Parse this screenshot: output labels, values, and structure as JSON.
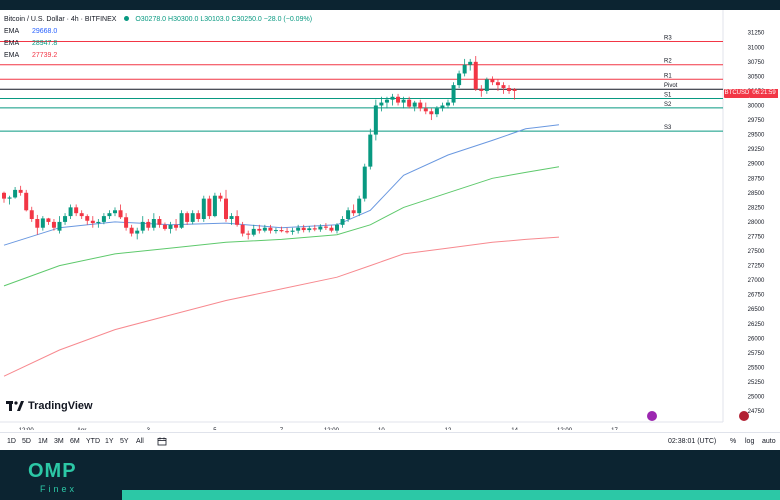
{
  "header": {
    "title": "Bitcoin / U.S. Dollar · 4h · BITFINEX",
    "ohlc": "O30278.0 H30300.0 L30103.0 C30250.0 −28.0 (−0.09%)"
  },
  "legend": [
    {
      "name": "EMA",
      "value": "29668.0",
      "color": "#2962ff"
    },
    {
      "name": "EMA",
      "value": "28947.8",
      "color": "#089981"
    },
    {
      "name": "EMA",
      "value": "27739.2",
      "color": "#f23645"
    }
  ],
  "price_badge": {
    "ticker": "BTCUSD",
    "time": "06:21:59"
  },
  "brand": {
    "name": "TradingView"
  },
  "toolbar": {
    "ranges": [
      "1D",
      "5D",
      "1M",
      "3M",
      "6M",
      "YTD",
      "1Y",
      "5Y",
      "All"
    ],
    "clock": "02:38:01 (UTC)",
    "percent": "%",
    "log": "log",
    "auto": "auto"
  },
  "footer": {
    "brand": "OMP",
    "sub": "Finex"
  },
  "chart_data": {
    "type": "candlestick",
    "y_ticks": [
      24750,
      25000,
      25250,
      25500,
      25750,
      26000,
      26250,
      26500,
      26750,
      27000,
      27250,
      27500,
      27750,
      28000,
      28250,
      28500,
      28750,
      29000,
      29250,
      29500,
      29750,
      30000,
      30250,
      30500,
      30750,
      31000,
      31250
    ],
    "ylim": [
      24700,
      31400
    ],
    "x_ticks": [
      {
        "label": "12:00",
        "bar": 4
      },
      {
        "label": "Apr",
        "bar": 14
      },
      {
        "label": "3",
        "bar": 26
      },
      {
        "label": "5",
        "bar": 38
      },
      {
        "label": "7",
        "bar": 50
      },
      {
        "label": "12:00",
        "bar": 59
      },
      {
        "label": "10",
        "bar": 68
      },
      {
        "label": "12",
        "bar": 80
      },
      {
        "label": "14",
        "bar": 92
      },
      {
        "label": "12:00",
        "bar": 101
      },
      {
        "label": "17",
        "bar": 110
      }
    ],
    "pivot_levels": [
      {
        "name": "R3",
        "price": 31100,
        "color": "#f23645"
      },
      {
        "name": "R2",
        "price": 30700,
        "color": "#f23645"
      },
      {
        "name": "R1",
        "price": 30450,
        "color": "#f23645"
      },
      {
        "name": "Pivot",
        "price": 30280,
        "color": "#131722"
      },
      {
        "name": "S1",
        "price": 30120,
        "color": "#089981"
      },
      {
        "name": "S2",
        "price": 29960,
        "color": "#089981"
      },
      {
        "name": "S3",
        "price": 29560,
        "color": "#089981"
      }
    ],
    "candles": [
      [
        28500,
        28520,
        28330,
        28400
      ],
      [
        28400,
        28450,
        28300,
        28420
      ],
      [
        28420,
        28600,
        28400,
        28550
      ],
      [
        28550,
        28620,
        28450,
        28500
      ],
      [
        28500,
        28550,
        28180,
        28200
      ],
      [
        28200,
        28260,
        28000,
        28050
      ],
      [
        28050,
        28120,
        27780,
        27900
      ],
      [
        27900,
        28100,
        27850,
        28060
      ],
      [
        28060,
        28070,
        27950,
        28000
      ],
      [
        28000,
        28050,
        27850,
        27900
      ],
      [
        27850,
        28100,
        27800,
        28000
      ],
      [
        28000,
        28150,
        27950,
        28100
      ],
      [
        28100,
        28300,
        28050,
        28250
      ],
      [
        28250,
        28300,
        28100,
        28150
      ],
      [
        28150,
        28200,
        28050,
        28100
      ],
      [
        28100,
        28130,
        27950,
        28020
      ],
      [
        28020,
        28100,
        27900,
        27980
      ],
      [
        27980,
        28050,
        27900,
        28000
      ],
      [
        28000,
        28150,
        27960,
        28100
      ],
      [
        28100,
        28200,
        28050,
        28150
      ],
      [
        28150,
        28250,
        28100,
        28200
      ],
      [
        28200,
        28300,
        28050,
        28080
      ],
      [
        28080,
        28150,
        27850,
        27900
      ],
      [
        27900,
        27950,
        27750,
        27800
      ],
      [
        27800,
        27900,
        27700,
        27850
      ],
      [
        27850,
        28100,
        27800,
        28000
      ],
      [
        28000,
        28050,
        27850,
        27900
      ],
      [
        27900,
        28150,
        27850,
        28050
      ],
      [
        28050,
        28100,
        27900,
        27950
      ],
      [
        27950,
        27990,
        27850,
        27880
      ],
      [
        27880,
        28000,
        27800,
        27950
      ],
      [
        27950,
        28050,
        27850,
        27900
      ],
      [
        27900,
        28200,
        27880,
        28150
      ],
      [
        28150,
        28180,
        27950,
        28000
      ],
      [
        28000,
        28200,
        27960,
        28150
      ],
      [
        28150,
        28200,
        28000,
        28050
      ],
      [
        28050,
        28450,
        28000,
        28400
      ],
      [
        28400,
        28450,
        28050,
        28100
      ],
      [
        28100,
        28500,
        28080,
        28450
      ],
      [
        28450,
        28500,
        28350,
        28400
      ],
      [
        28400,
        28550,
        28000,
        28050
      ],
      [
        28050,
        28150,
        27950,
        28100
      ],
      [
        28100,
        28200,
        27920,
        27950
      ],
      [
        27950,
        28000,
        27750,
        27800
      ],
      [
        27800,
        27850,
        27700,
        27780
      ],
      [
        27780,
        27950,
        27750,
        27880
      ],
      [
        27880,
        27950,
        27800,
        27850
      ],
      [
        27850,
        27950,
        27820,
        27900
      ],
      [
        27900,
        27950,
        27800,
        27850
      ],
      [
        27850,
        27900,
        27800,
        27860
      ],
      [
        27860,
        27920,
        27820,
        27840
      ],
      [
        27840,
        27900,
        27800,
        27830
      ],
      [
        27830,
        27900,
        27780,
        27850
      ],
      [
        27850,
        27950,
        27800,
        27900
      ],
      [
        27900,
        27950,
        27820,
        27860
      ],
      [
        27860,
        27930,
        27820,
        27890
      ],
      [
        27890,
        27950,
        27840,
        27870
      ],
      [
        27870,
        27960,
        27830,
        27920
      ],
      [
        27920,
        27980,
        27860,
        27900
      ],
      [
        27900,
        27940,
        27820,
        27850
      ],
      [
        27850,
        27980,
        27800,
        27950
      ],
      [
        27950,
        28100,
        27900,
        28050
      ],
      [
        28050,
        28250,
        28000,
        28200
      ],
      [
        28200,
        28300,
        28100,
        28150
      ],
      [
        28150,
        28450,
        28100,
        28400
      ],
      [
        28400,
        29000,
        28350,
        28950
      ],
      [
        28950,
        29600,
        28900,
        29500
      ],
      [
        29500,
        30100,
        29400,
        30000
      ],
      [
        30000,
        30150,
        29900,
        30050
      ],
      [
        30050,
        30150,
        29950,
        30100
      ],
      [
        30100,
        30200,
        30000,
        30150
      ],
      [
        30150,
        30200,
        30000,
        30050
      ],
      [
        30050,
        30150,
        29950,
        30100
      ],
      [
        30100,
        30150,
        29950,
        29980
      ],
      [
        29980,
        30080,
        29900,
        30050
      ],
      [
        30050,
        30100,
        29900,
        29950
      ],
      [
        29950,
        30050,
        29850,
        29900
      ],
      [
        29900,
        29950,
        29750,
        29850
      ],
      [
        29850,
        29990,
        29800,
        29950
      ],
      [
        29950,
        30050,
        29900,
        30000
      ],
      [
        30000,
        30100,
        29950,
        30050
      ],
      [
        30050,
        30400,
        30000,
        30350
      ],
      [
        30350,
        30600,
        30300,
        30550
      ],
      [
        30550,
        30800,
        30500,
        30700
      ],
      [
        30700,
        30800,
        30600,
        30750
      ],
      [
        30750,
        30850,
        30250,
        30280
      ],
      [
        30280,
        30350,
        30150,
        30250
      ],
      [
        30250,
        30480,
        30200,
        30450
      ],
      [
        30450,
        30500,
        30350,
        30400
      ],
      [
        30400,
        30450,
        30250,
        30350
      ],
      [
        30350,
        30400,
        30200,
        30300
      ],
      [
        30300,
        30350,
        30200,
        30250
      ],
      [
        30278,
        30300,
        30103,
        30250
      ]
    ],
    "ema_fast_points": [
      [
        0,
        27600
      ],
      [
        10,
        27900
      ],
      [
        20,
        28000
      ],
      [
        30,
        27950
      ],
      [
        40,
        27980
      ],
      [
        50,
        27900
      ],
      [
        60,
        27950
      ],
      [
        66,
        28200
      ],
      [
        72,
        28800
      ],
      [
        80,
        29150
      ],
      [
        88,
        29400
      ],
      [
        94,
        29600
      ],
      [
        100,
        29668
      ]
    ],
    "ema_mid_points": [
      [
        0,
        26900
      ],
      [
        10,
        27250
      ],
      [
        20,
        27450
      ],
      [
        30,
        27550
      ],
      [
        40,
        27650
      ],
      [
        50,
        27700
      ],
      [
        60,
        27780
      ],
      [
        66,
        27950
      ],
      [
        72,
        28250
      ],
      [
        80,
        28500
      ],
      [
        88,
        28750
      ],
      [
        94,
        28850
      ],
      [
        100,
        28947.8
      ]
    ],
    "ema_slow_points": [
      [
        0,
        25350
      ],
      [
        10,
        25800
      ],
      [
        20,
        26150
      ],
      [
        30,
        26400
      ],
      [
        40,
        26650
      ],
      [
        50,
        26850
      ],
      [
        60,
        27050
      ],
      [
        66,
        27250
      ],
      [
        72,
        27450
      ],
      [
        80,
        27550
      ],
      [
        88,
        27650
      ],
      [
        94,
        27700
      ],
      [
        100,
        27739.2
      ]
    ]
  }
}
